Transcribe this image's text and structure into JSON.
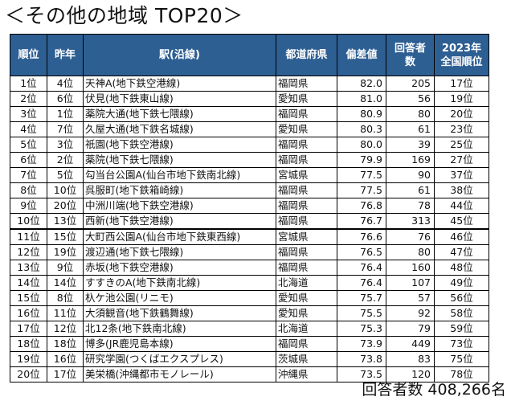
{
  "title": "＜その他の地域 TOP20＞",
  "headers": {
    "rank": "順位",
    "prev": "昨年",
    "station": "駅(沿線)",
    "pref": "都道府県",
    "score": "偏差値",
    "resp_line1": "回答者",
    "resp_line2": "数",
    "nat_line1": "2023年",
    "nat_line2": "全国順位"
  },
  "rows": [
    {
      "rank": "1位",
      "prev": "4位",
      "station": "天神A(地下鉄空港線)",
      "pref": "福岡県",
      "score": "82.0",
      "respondents": "205",
      "national": "17位"
    },
    {
      "rank": "2位",
      "prev": "6位",
      "station": "伏見(地下鉄東山線)",
      "pref": "愛知県",
      "score": "81.0",
      "respondents": "56",
      "national": "19位"
    },
    {
      "rank": "3位",
      "prev": "1位",
      "station": "薬院大通(地下鉄七隈線)",
      "pref": "福岡県",
      "score": "80.9",
      "respondents": "80",
      "national": "20位"
    },
    {
      "rank": "4位",
      "prev": "7位",
      "station": "久屋大通(地下鉄名城線)",
      "pref": "愛知県",
      "score": "80.3",
      "respondents": "61",
      "national": "23位"
    },
    {
      "rank": "5位",
      "prev": "3位",
      "station": "祇園(地下鉄空港線)",
      "pref": "福岡県",
      "score": "80.0",
      "respondents": "39",
      "national": "25位"
    },
    {
      "rank": "6位",
      "prev": "2位",
      "station": "薬院(地下鉄七隈線)",
      "pref": "福岡県",
      "score": "79.9",
      "respondents": "169",
      "national": "27位"
    },
    {
      "rank": "7位",
      "prev": "5位",
      "station": "勾当台公園A(仙台市地下鉄南北線)",
      "pref": "宮城県",
      "score": "77.5",
      "respondents": "90",
      "national": "37位"
    },
    {
      "rank": "8位",
      "prev": "10位",
      "station": "呉服町(地下鉄箱崎線)",
      "pref": "福岡県",
      "score": "77.5",
      "respondents": "61",
      "national": "38位"
    },
    {
      "rank": "9位",
      "prev": "20位",
      "station": "中洲川端(地下鉄空港線)",
      "pref": "福岡県",
      "score": "76.8",
      "respondents": "78",
      "national": "44位"
    },
    {
      "rank": "10位",
      "prev": "13位",
      "station": "西新(地下鉄空港線)",
      "pref": "福岡県",
      "score": "76.7",
      "respondents": "313",
      "national": "45位"
    },
    {
      "rank": "11位",
      "prev": "15位",
      "station": "大町西公園A(仙台市地下鉄東西線)",
      "pref": "宮城県",
      "score": "76.6",
      "respondents": "76",
      "national": "46位"
    },
    {
      "rank": "12位",
      "prev": "19位",
      "station": "渡辺通(地下鉄七隈線)",
      "pref": "福岡県",
      "score": "76.5",
      "respondents": "80",
      "national": "47位"
    },
    {
      "rank": "13位",
      "prev": "9位",
      "station": "赤坂(地下鉄空港線)",
      "pref": "福岡県",
      "score": "76.4",
      "respondents": "160",
      "national": "48位"
    },
    {
      "rank": "14位",
      "prev": "14位",
      "station": "すすきのA(地下鉄南北線)",
      "pref": "北海道",
      "score": "76.4",
      "respondents": "107",
      "national": "49位"
    },
    {
      "rank": "15位",
      "prev": "8位",
      "station": "杁ケ池公園(リニモ)",
      "pref": "愛知県",
      "score": "75.7",
      "respondents": "57",
      "national": "56位"
    },
    {
      "rank": "16位",
      "prev": "11位",
      "station": "大須観音(地下鉄鶴舞線)",
      "pref": "愛知県",
      "score": "75.5",
      "respondents": "92",
      "national": "58位"
    },
    {
      "rank": "17位",
      "prev": "12位",
      "station": "北12条(地下鉄南北線)",
      "pref": "北海道",
      "score": "75.3",
      "respondents": "79",
      "national": "59位"
    },
    {
      "rank": "18位",
      "prev": "18位",
      "station": "博多(JR鹿児島本線)",
      "pref": "福岡県",
      "score": "73.9",
      "respondents": "449",
      "national": "73位"
    },
    {
      "rank": "19位",
      "prev": "16位",
      "station": "研究学園(つくばエクスプレス)",
      "pref": "茨城県",
      "score": "73.8",
      "respondents": "83",
      "national": "75位"
    },
    {
      "rank": "20位",
      "prev": "17位",
      "station": "美栄橋(沖縄都市モノレール)",
      "pref": "沖縄県",
      "score": "73.5",
      "respondents": "120",
      "national": "78位"
    }
  ],
  "footer": "回答者数 408,266名",
  "colors": {
    "header_bg": "#2e5f93",
    "header_text": "#ffffff"
  }
}
